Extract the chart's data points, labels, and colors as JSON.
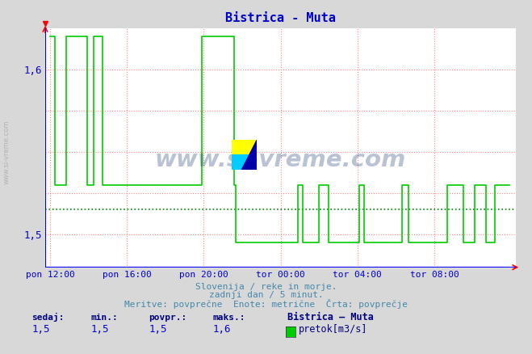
{
  "title": "Bistrica - Muta",
  "title_color": "#0000cc",
  "bg_color": "#d8d8d8",
  "plot_bg_color": "#ffffff",
  "line_color": "#00cc00",
  "avg_line_color": "#008800",
  "grid_color_h": "#ff8888",
  "grid_color_v": "#ff8888",
  "ylabel_color": "#0000cc",
  "xlabel_color": "#0000cc",
  "ylim_low": 1.48,
  "ylim_high": 1.625,
  "ytick_vals": [
    1.5,
    1.6
  ],
  "ytick_labels": [
    "1,5",
    "1,6"
  ],
  "xtick_labels": [
    "pon 12:00",
    "pon 16:00",
    "pon 20:00",
    "tor 00:00",
    "tor 04:00",
    "tor 08:00"
  ],
  "xtick_positions": [
    0,
    48,
    96,
    144,
    192,
    240
  ],
  "n_points": 288,
  "avg_value": 1.515,
  "subtitle1": "Slovenija / reke in morje.",
  "subtitle2": "zadnji dan / 5 minut.",
  "subtitle3": "Meritve: povprečne  Enote: metrične  Črta: povprečje",
  "stat_labels": [
    "sedaj:",
    "min.:",
    "povpr.:",
    "maks.:"
  ],
  "stat_values": [
    "1,5",
    "1,5",
    "1,5",
    "1,6"
  ],
  "stat_label_color": "#000080",
  "stat_value_color": "#0000cc",
  "legend_title": "Bistrica – Muta",
  "legend_label": "pretok[m3/s]",
  "legend_color": "#00cc00",
  "watermark_text": "www.si-vreme.com",
  "watermark_color": "#1a3a6e",
  "high_val": 1.62,
  "mid_val": 1.53,
  "low_val": 1.495
}
